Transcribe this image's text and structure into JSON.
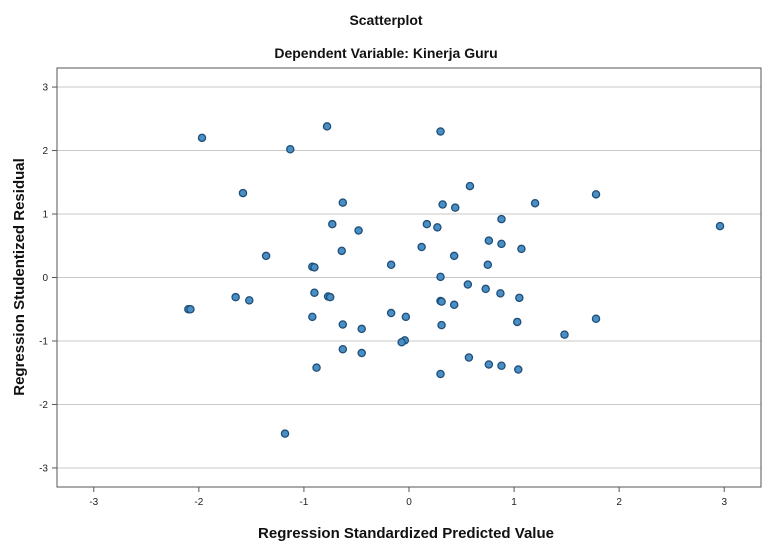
{
  "chart_data": {
    "type": "scatter",
    "title": "Scatterplot",
    "subtitle": "Dependent Variable: Kinerja Guru",
    "xlabel": "Regression Standardized Predicted Value",
    "ylabel": "Regression Studentized Residual",
    "xlim": [
      -3.35,
      3.35
    ],
    "ylim": [
      -3.3,
      3.3
    ],
    "xticks": [
      "-3",
      "-2",
      "-1",
      "0",
      "1",
      "2",
      "3"
    ],
    "yticks": [
      "3",
      "2",
      "1",
      "0",
      "-1",
      "-2",
      "-3"
    ],
    "xtick_values": [
      -3,
      -2,
      -1,
      0,
      1,
      2,
      3
    ],
    "ytick_values": [
      3,
      2,
      1,
      0,
      -1,
      -2,
      -3
    ],
    "grid": "horizontal",
    "colors": {
      "marker_fill": "#4a8fc4",
      "marker_stroke": "#1f4e79",
      "grid": "#c8c8c8",
      "axis": "#555555"
    },
    "points": [
      {
        "x": -1.97,
        "y": 2.2
      },
      {
        "x": -0.78,
        "y": 2.38
      },
      {
        "x": 0.3,
        "y": 2.3
      },
      {
        "x": -1.13,
        "y": 2.02
      },
      {
        "x": -1.58,
        "y": 1.33
      },
      {
        "x": -0.63,
        "y": 1.18
      },
      {
        "x": 0.58,
        "y": 1.44
      },
      {
        "x": 0.32,
        "y": 1.15
      },
      {
        "x": 0.44,
        "y": 1.1
      },
      {
        "x": 1.2,
        "y": 1.17
      },
      {
        "x": 1.78,
        "y": 1.31
      },
      {
        "x": 0.88,
        "y": 0.92
      },
      {
        "x": -0.73,
        "y": 0.84
      },
      {
        "x": -0.48,
        "y": 0.74
      },
      {
        "x": 0.17,
        "y": 0.84
      },
      {
        "x": 0.27,
        "y": 0.79
      },
      {
        "x": 2.96,
        "y": 0.81
      },
      {
        "x": -0.64,
        "y": 0.42
      },
      {
        "x": 0.12,
        "y": 0.48
      },
      {
        "x": 0.76,
        "y": 0.58
      },
      {
        "x": 0.88,
        "y": 0.53
      },
      {
        "x": 1.07,
        "y": 0.45
      },
      {
        "x": -1.36,
        "y": 0.34
      },
      {
        "x": 0.43,
        "y": 0.34
      },
      {
        "x": -0.17,
        "y": 0.2
      },
      {
        "x": -0.92,
        "y": 0.17
      },
      {
        "x": -0.9,
        "y": 0.16
      },
      {
        "x": 0.75,
        "y": 0.2
      },
      {
        "x": 0.3,
        "y": 0.01
      },
      {
        "x": 0.56,
        "y": -0.11
      },
      {
        "x": 0.73,
        "y": -0.18
      },
      {
        "x": -0.9,
        "y": -0.24
      },
      {
        "x": -0.77,
        "y": -0.3
      },
      {
        "x": -0.75,
        "y": -0.31
      },
      {
        "x": 0.87,
        "y": -0.25
      },
      {
        "x": 1.05,
        "y": -0.32
      },
      {
        "x": -1.65,
        "y": -0.31
      },
      {
        "x": -1.52,
        "y": -0.36
      },
      {
        "x": 0.3,
        "y": -0.37
      },
      {
        "x": 0.31,
        "y": -0.38
      },
      {
        "x": 0.43,
        "y": -0.43
      },
      {
        "x": -2.1,
        "y": -0.5
      },
      {
        "x": -2.08,
        "y": -0.5
      },
      {
        "x": -0.17,
        "y": -0.56
      },
      {
        "x": -0.03,
        "y": -0.62
      },
      {
        "x": -0.92,
        "y": -0.62
      },
      {
        "x": -0.63,
        "y": -0.74
      },
      {
        "x": -0.45,
        "y": -0.81
      },
      {
        "x": 0.31,
        "y": -0.75
      },
      {
        "x": 1.03,
        "y": -0.7
      },
      {
        "x": 1.78,
        "y": -0.65
      },
      {
        "x": 1.48,
        "y": -0.9
      },
      {
        "x": -0.04,
        "y": -0.99
      },
      {
        "x": -0.07,
        "y": -1.02
      },
      {
        "x": -0.63,
        "y": -1.13
      },
      {
        "x": -0.45,
        "y": -1.19
      },
      {
        "x": 0.57,
        "y": -1.26
      },
      {
        "x": 0.76,
        "y": -1.37
      },
      {
        "x": 0.88,
        "y": -1.39
      },
      {
        "x": 1.04,
        "y": -1.45
      },
      {
        "x": -0.88,
        "y": -1.42
      },
      {
        "x": 0.3,
        "y": -1.52
      },
      {
        "x": -1.18,
        "y": -2.46
      }
    ]
  }
}
